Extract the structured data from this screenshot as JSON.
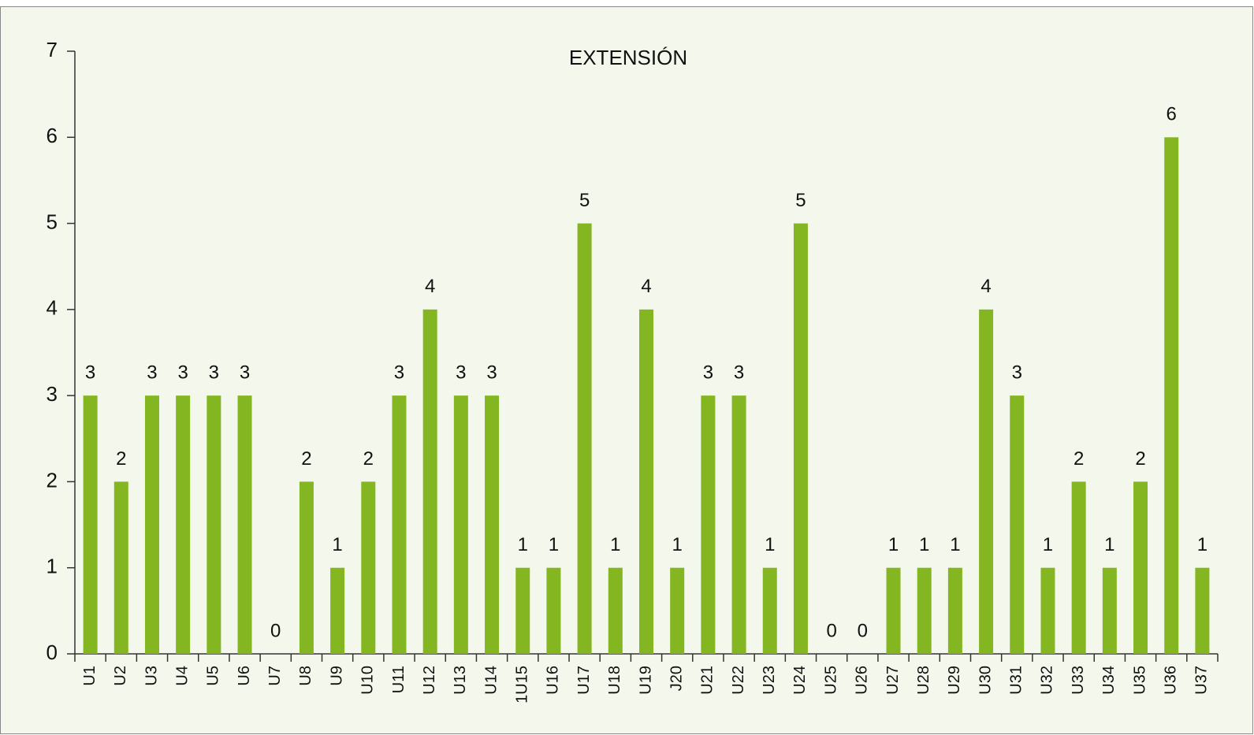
{
  "chart_data": {
    "type": "bar",
    "title": "EXTENSIÓN",
    "categories": [
      "U1",
      "U2",
      "U3",
      "U4",
      "U5",
      "U6",
      "U7",
      "U8",
      "U9",
      "U10",
      "U11",
      "U12",
      "U13",
      "U14",
      "1U15",
      "U16",
      "U17",
      "U18",
      "U19",
      "J20",
      "U21",
      "U22",
      "U23",
      "U24",
      "U25",
      "U26",
      "U27",
      "U28",
      "U29",
      "U30",
      "U31",
      "U32",
      "U33",
      "U34",
      "U35",
      "U36",
      "U37"
    ],
    "values": [
      3,
      2,
      3,
      3,
      3,
      3,
      0,
      2,
      1,
      2,
      3,
      4,
      3,
      3,
      1,
      1,
      5,
      1,
      4,
      1,
      3,
      3,
      1,
      5,
      0,
      0,
      1,
      1,
      1,
      4,
      3,
      1,
      2,
      1,
      2,
      6,
      1
    ],
    "color": "#84b622",
    "ylim": [
      0,
      7
    ],
    "yticks": [
      0,
      1,
      2,
      3,
      4,
      5,
      6,
      7
    ]
  }
}
